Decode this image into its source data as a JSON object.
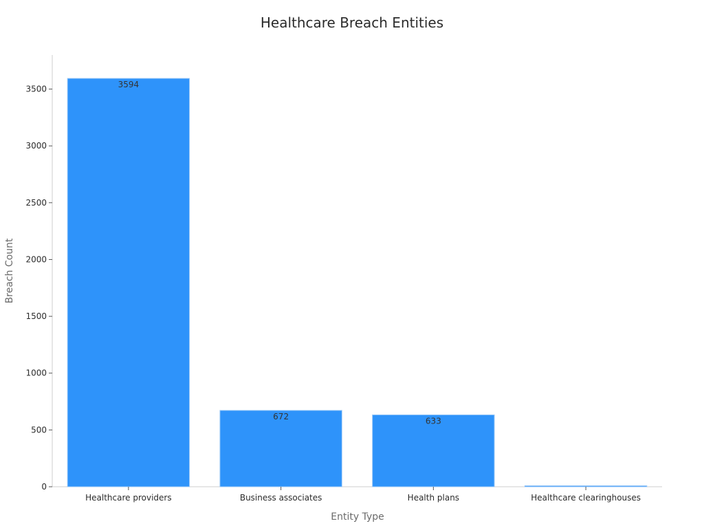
{
  "chart_data": {
    "type": "bar",
    "title": "Healthcare Breach Entities",
    "xlabel": "Entity Type",
    "ylabel": "Breach Count",
    "categories": [
      "Healthcare providers",
      "Business associates",
      "Health plans",
      "Healthcare clearinghouses"
    ],
    "values": [
      3594,
      672,
      633,
      9
    ],
    "data_labels": [
      "3594",
      "672",
      "633",
      ""
    ],
    "ylim": [
      0,
      3800
    ],
    "yticks": [
      0,
      500,
      1000,
      1500,
      2000,
      2500,
      3000,
      3500
    ],
    "grid": false,
    "legend": "none",
    "bar_color": "#2e93fa",
    "bar_edge_color": "#9cc9f7"
  }
}
